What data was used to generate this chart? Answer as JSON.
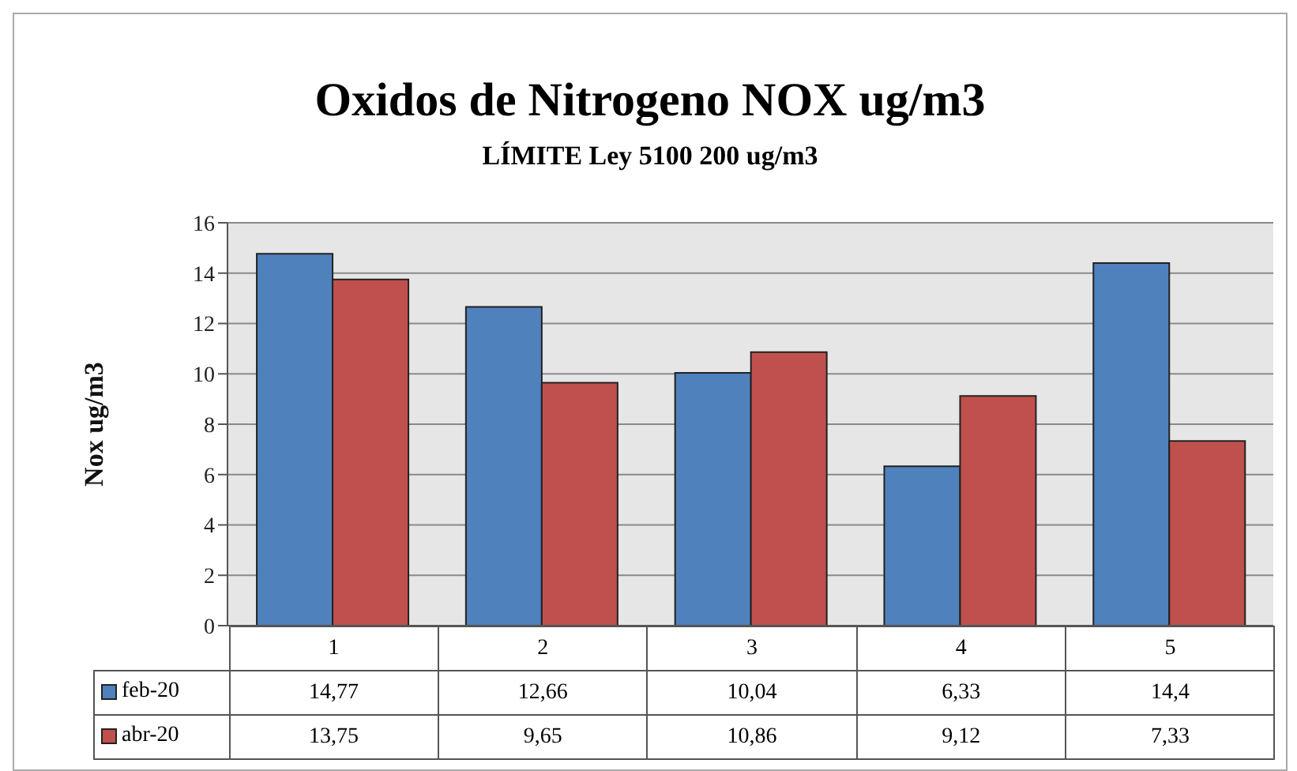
{
  "chart_data": {
    "type": "bar",
    "title": "Oxidos de Nitrogeno NOX ug/m3",
    "subtitle": "LÍMITE Ley 5100 200 ug/m3",
    "ylabel": "Nox ug/m3",
    "categories": [
      "1",
      "2",
      "3",
      "4",
      "5"
    ],
    "series": [
      {
        "name": "feb-20",
        "color": "#4f81bd",
        "values": [
          14.77,
          12.66,
          10.04,
          6.33,
          14.4
        ],
        "value_labels": [
          "14,77",
          "12,66",
          "10,04",
          "6,33",
          "14,4"
        ]
      },
      {
        "name": "abr-20",
        "color": "#c0504d",
        "values": [
          13.75,
          9.65,
          10.86,
          9.12,
          7.33
        ],
        "value_labels": [
          "13,75",
          "9,65",
          "10,86",
          "9,12",
          "7,33"
        ]
      }
    ],
    "ylim": [
      0,
      16
    ],
    "yticks": [
      0,
      2,
      4,
      6,
      8,
      10,
      12,
      14,
      16
    ],
    "grid": "y",
    "legend": "bottom"
  }
}
